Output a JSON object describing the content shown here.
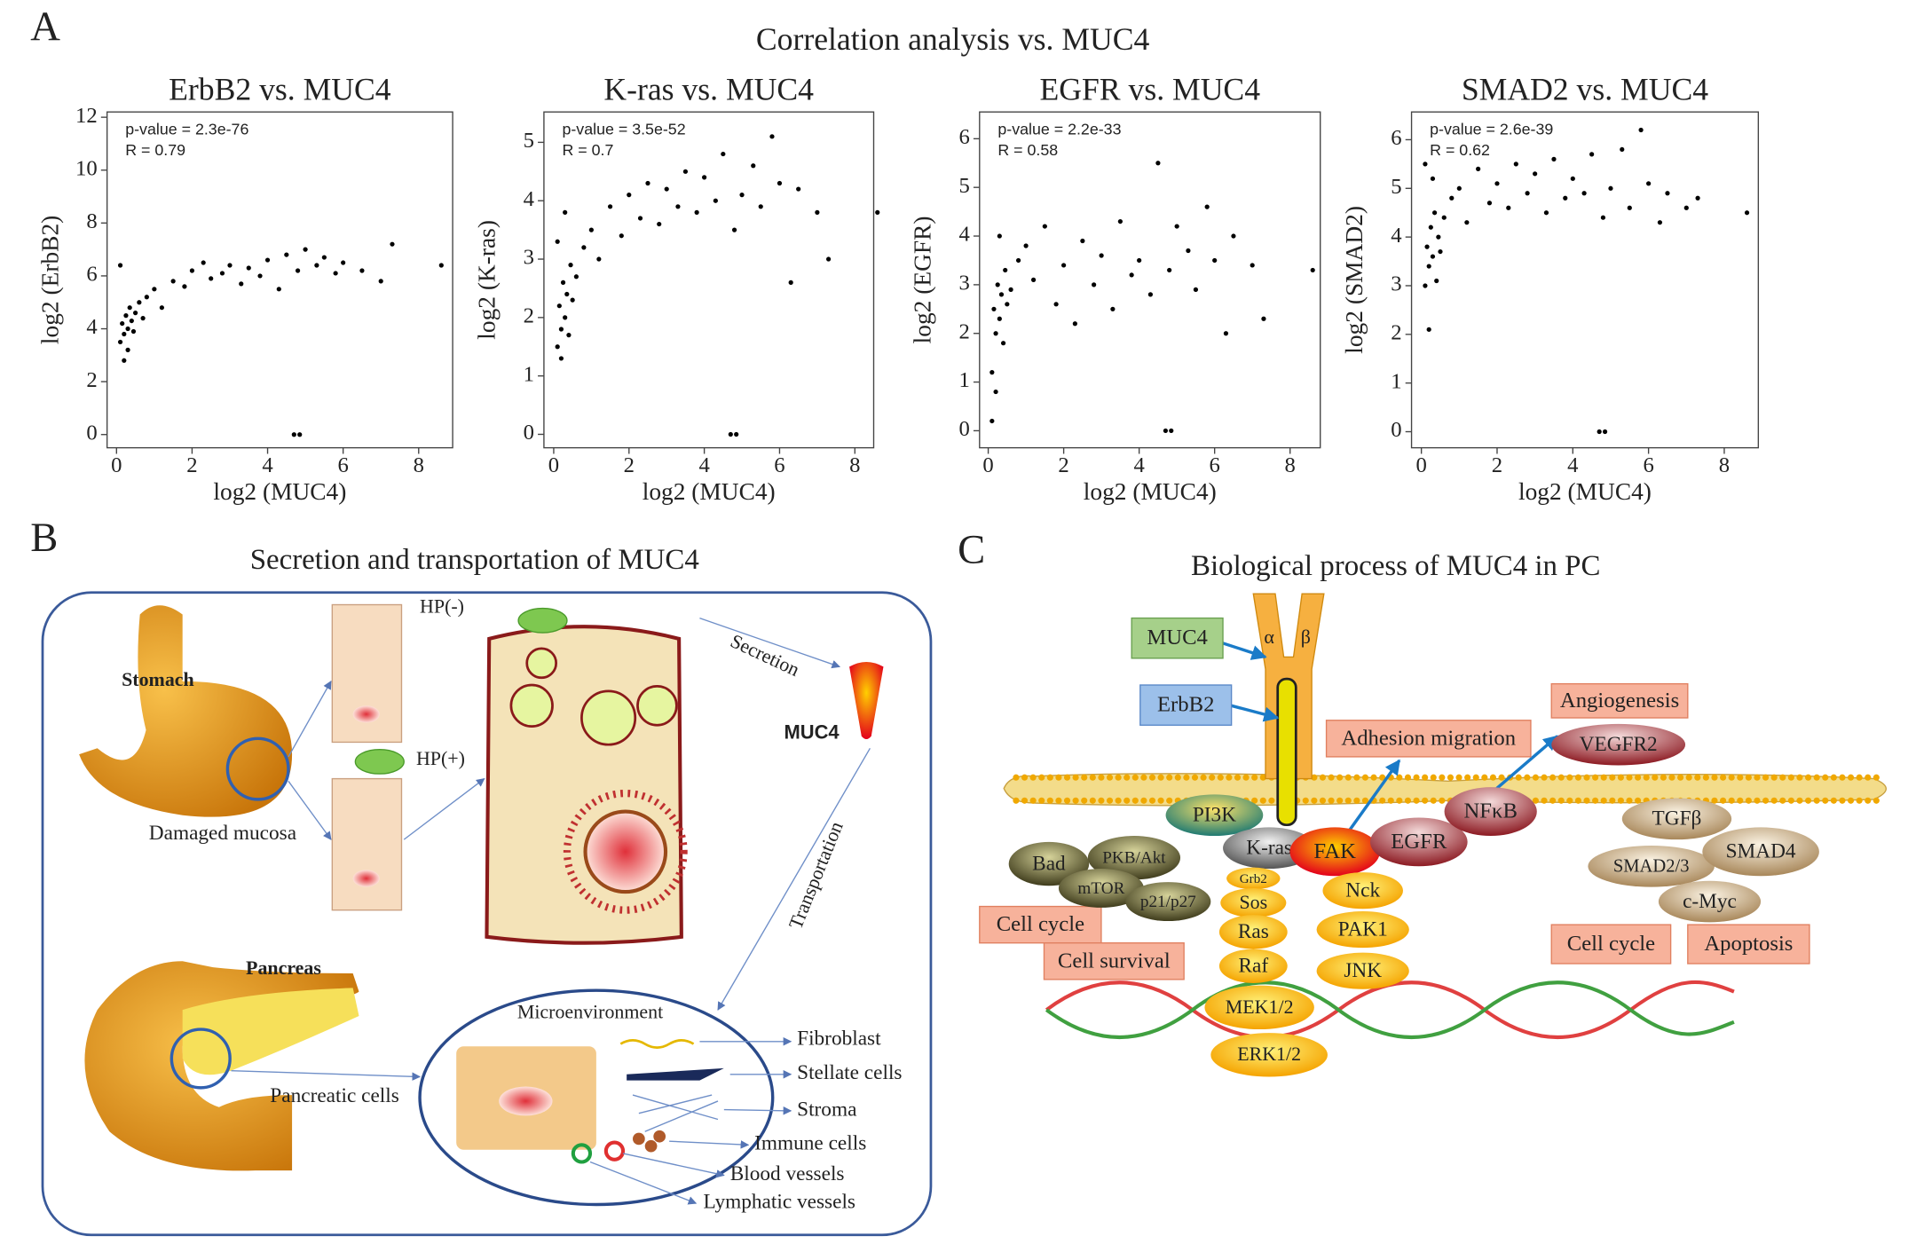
{
  "panel_a": {
    "label": "A",
    "title": "Correlation analysis vs. MUC4"
  },
  "chart_data": [
    {
      "type": "scatter",
      "title": "ErbB2 vs. MUC4",
      "x_label": "log2 (MUC4)",
      "y_label": "log2 (ErbB2)",
      "annotations": [
        "p-value = 2.3e-76",
        "R = 0.79"
      ],
      "color": "#000000",
      "x": [
        0.1,
        0.15,
        0.2,
        0.25,
        0.3,
        0.3,
        0.35,
        0.4,
        0.45,
        0.5,
        0.2,
        0.1,
        0.6,
        0.7,
        0.8,
        1.0,
        1.2,
        1.5,
        1.8,
        2.0,
        2.3,
        2.5,
        2.8,
        3.0,
        3.3,
        3.5,
        3.8,
        4.0,
        4.3,
        4.5,
        4.8,
        5.0,
        5.3,
        5.5,
        5.8,
        6.0,
        6.5,
        7.0,
        7.3,
        8.6,
        4.7,
        4.85
      ],
      "y": [
        3.5,
        4.2,
        3.8,
        4.5,
        4.0,
        3.2,
        4.8,
        4.3,
        3.9,
        4.6,
        2.8,
        6.4,
        5.0,
        4.4,
        5.2,
        5.5,
        4.8,
        5.8,
        5.6,
        6.2,
        6.5,
        5.9,
        6.1,
        6.4,
        5.7,
        6.3,
        6.0,
        6.6,
        5.5,
        6.8,
        6.2,
        7.0,
        6.4,
        6.7,
        6.1,
        6.5,
        6.2,
        5.8,
        7.2,
        6.4,
        0,
        0
      ],
      "xlim": [
        -0.25,
        8.9
      ],
      "ylim": [
        -0.5,
        12.2
      ],
      "xticks": [
        0,
        2,
        4,
        6,
        8
      ],
      "yticks": [
        0,
        2,
        4,
        6,
        8,
        10,
        12
      ]
    },
    {
      "type": "scatter",
      "title": "K-ras vs. MUC4",
      "x_label": "log2 (MUC4)",
      "y_label": "log2 (K-ras)",
      "annotations": [
        "p-value = 3.5e-52",
        "R = 0.7"
      ],
      "color": "#000000",
      "x": [
        0.1,
        0.15,
        0.2,
        0.25,
        0.3,
        0.35,
        0.4,
        0.45,
        0.5,
        0.2,
        0.3,
        0.6,
        0.8,
        1.0,
        1.2,
        1.5,
        1.8,
        2.0,
        2.3,
        2.5,
        2.8,
        3.0,
        3.3,
        3.5,
        3.8,
        4.0,
        4.3,
        4.5,
        4.8,
        5.0,
        5.3,
        5.5,
        5.8,
        6.0,
        6.3,
        6.5,
        7.0,
        7.3,
        8.6,
        4.7,
        4.85,
        0.1
      ],
      "y": [
        1.5,
        2.2,
        1.8,
        2.6,
        2.0,
        2.4,
        1.7,
        2.9,
        2.3,
        1.3,
        3.8,
        2.7,
        3.2,
        3.5,
        3.0,
        3.9,
        3.4,
        4.1,
        3.7,
        4.3,
        3.6,
        4.2,
        3.9,
        4.5,
        3.8,
        4.4,
        4.0,
        4.8,
        3.5,
        4.1,
        4.6,
        3.9,
        5.1,
        4.3,
        2.6,
        4.2,
        3.8,
        3.0,
        3.8,
        0,
        0,
        3.3
      ],
      "xlim": [
        -0.26,
        8.5
      ],
      "ylim": [
        -0.23,
        5.52
      ],
      "xticks": [
        0,
        2,
        4,
        6,
        8
      ],
      "yticks": [
        0,
        1,
        2,
        3,
        4,
        5
      ]
    },
    {
      "type": "scatter",
      "title": "EGFR vs. MUC4",
      "x_label": "log2 (MUC4)",
      "y_label": "log2 (EGFR)",
      "annotations": [
        "p-value = 2.2e-33",
        "R = 0.58"
      ],
      "color": "#000000",
      "x": [
        0.1,
        0.15,
        0.2,
        0.25,
        0.3,
        0.35,
        0.4,
        0.45,
        0.5,
        0.2,
        0.3,
        0.6,
        0.8,
        1.0,
        1.2,
        1.5,
        1.8,
        2.0,
        2.3,
        2.5,
        2.8,
        3.0,
        3.3,
        3.5,
        3.8,
        4.0,
        4.3,
        4.5,
        4.8,
        5.0,
        5.3,
        5.5,
        5.8,
        6.0,
        6.3,
        6.5,
        7.0,
        7.3,
        8.6,
        4.7,
        4.85,
        0.1
      ],
      "y": [
        1.2,
        2.5,
        2.0,
        3.0,
        2.3,
        2.8,
        1.8,
        3.3,
        2.6,
        0.8,
        4.0,
        2.9,
        3.5,
        3.8,
        3.1,
        4.2,
        2.6,
        3.4,
        2.2,
        3.9,
        3.0,
        3.6,
        2.5,
        4.3,
        3.2,
        3.5,
        2.8,
        5.5,
        3.3,
        4.2,
        3.7,
        2.9,
        4.6,
        3.5,
        2.0,
        4.0,
        3.4,
        2.3,
        3.3,
        0,
        0,
        0.2
      ],
      "xlim": [
        -0.23,
        8.8
      ],
      "ylim": [
        -0.35,
        6.55
      ],
      "xticks": [
        0,
        2,
        4,
        6,
        8
      ],
      "yticks": [
        0,
        1,
        2,
        3,
        4,
        5,
        6
      ]
    },
    {
      "type": "scatter",
      "title": "SMAD2 vs. MUC4",
      "x_label": "log2 (MUC4)",
      "y_label": "log2 (SMAD2)",
      "annotations": [
        "p-value = 2.6e-39",
        "R = 0.62"
      ],
      "color": "#000000",
      "x": [
        0.1,
        0.15,
        0.2,
        0.25,
        0.3,
        0.35,
        0.4,
        0.45,
        0.5,
        0.2,
        0.3,
        0.6,
        0.8,
        1.0,
        1.2,
        1.5,
        1.8,
        2.0,
        2.3,
        2.5,
        2.8,
        3.0,
        3.3,
        3.5,
        3.8,
        4.0,
        4.3,
        4.5,
        4.8,
        5.0,
        5.3,
        5.5,
        5.8,
        6.0,
        6.3,
        6.5,
        7.0,
        7.3,
        8.6,
        4.7,
        4.85,
        0.1
      ],
      "y": [
        3.0,
        3.8,
        3.4,
        4.2,
        3.6,
        4.5,
        3.1,
        4.0,
        3.7,
        2.1,
        5.2,
        4.4,
        4.8,
        5.0,
        4.3,
        5.4,
        4.7,
        5.1,
        4.6,
        5.5,
        4.9,
        5.3,
        4.5,
        5.6,
        4.8,
        5.2,
        4.9,
        5.7,
        4.4,
        5.0,
        5.8,
        4.6,
        6.2,
        5.1,
        4.3,
        4.9,
        4.6,
        4.8,
        4.5,
        0,
        0,
        5.5
      ],
      "xlim": [
        -0.26,
        8.9
      ],
      "ylim": [
        -0.33,
        6.57
      ],
      "xticks": [
        0,
        2,
        4,
        6,
        8
      ],
      "yticks": [
        0,
        1,
        2,
        3,
        4,
        5,
        6
      ]
    }
  ],
  "panel_b": {
    "label": "B",
    "title": "Secretion and transportation of MUC4",
    "labels": [
      "Stomach",
      "HP(-)",
      "HP(+)",
      "Secretion",
      "MUC4",
      "Damaged mucosa",
      "Transportation",
      "Pancreas",
      "Microenvironment",
      "Pancreatic cells",
      "Fibroblast",
      "Stellate cells",
      "Stroma",
      "Immune cells",
      "Blood vessels",
      "Lymphatic vessels"
    ]
  },
  "panel_c": {
    "label": "C",
    "title": "Biological process of MUC4 in PC",
    "greek": [
      "α",
      "β"
    ],
    "boxes": [
      "MUC4",
      "ErbB2",
      "Adhesion migration",
      "Angiogenesis",
      "Cell cycle",
      "Cell survival",
      "Cell cycle",
      "Apoptosis"
    ],
    "nodes": [
      "VEGFR2",
      "PI3K",
      "K-ras",
      "FAK",
      "EGFR",
      "NFκB",
      "TGFβ",
      "SMAD2/3",
      "SMAD4",
      "c-Myc",
      "Bad",
      "PKB/Akt",
      "mTOR",
      "p21/p27",
      "Grb2",
      "Sos",
      "Ras",
      "Raf",
      "MEK1/2",
      "ERK1/2",
      "Nck",
      "PAK1",
      "JNK"
    ]
  }
}
